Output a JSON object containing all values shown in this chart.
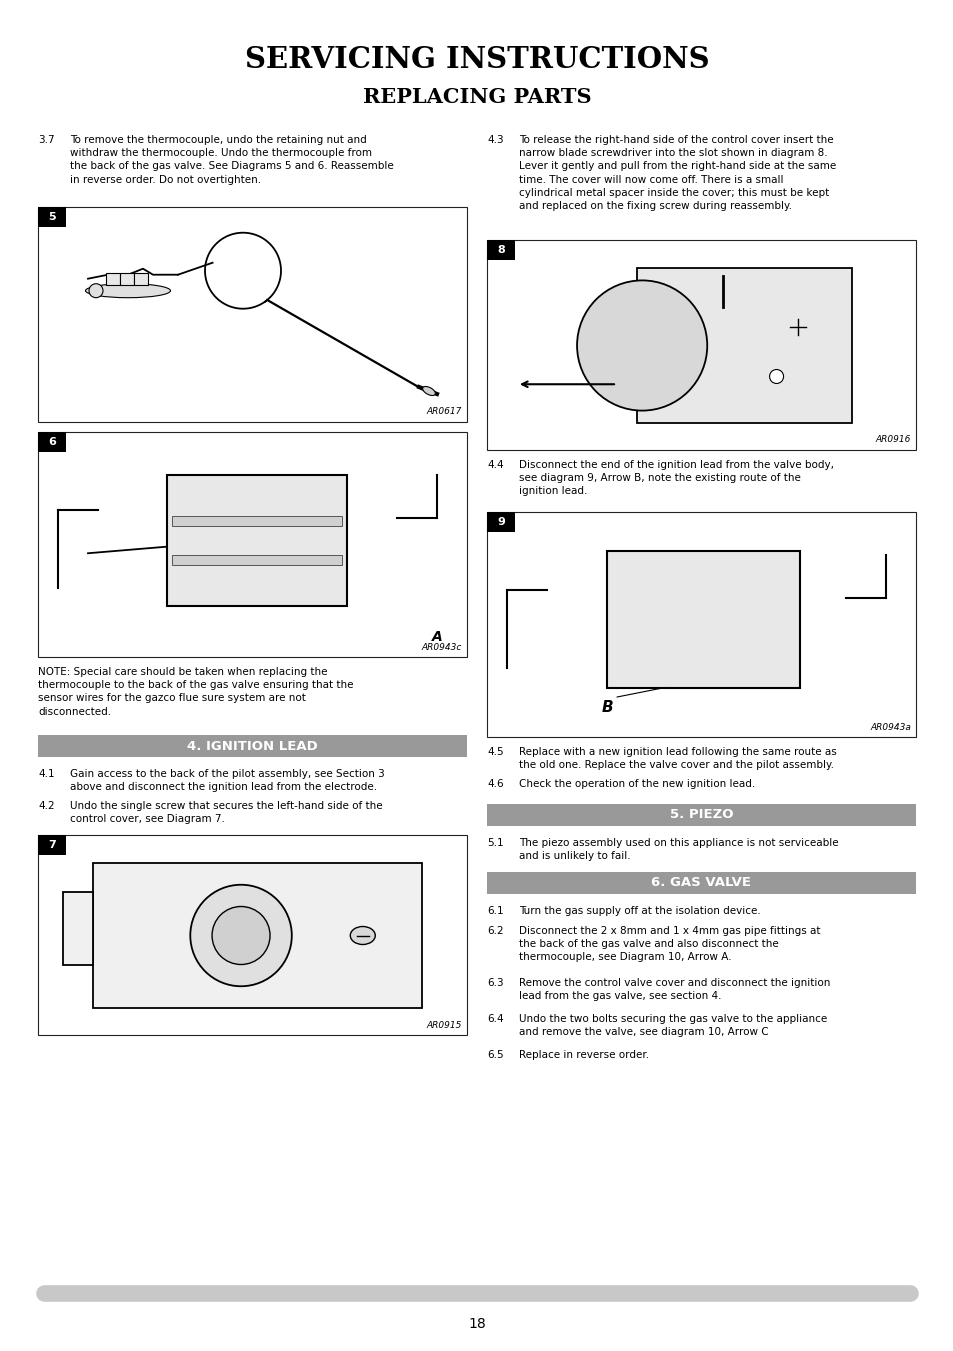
{
  "title1": "SERVICING INSTRUCTIONS",
  "title2": "REPLACING PARTS",
  "bg_color": "#ffffff",
  "page_number": "18",
  "header_bar_color": "#888888",
  "bottom_bar_color": "#c8c8c8",
  "sections": {
    "ignition_lead": "4. IGNITION LEAD",
    "piezo": "5. PIEZO",
    "gas_valve": "6. GAS VALVE"
  },
  "ar0617": "AR0617",
  "ar0943c": "AR0943c",
  "ar0915": "AR0915",
  "ar0916": "AR0916",
  "ar0943a": "AR0943a"
}
